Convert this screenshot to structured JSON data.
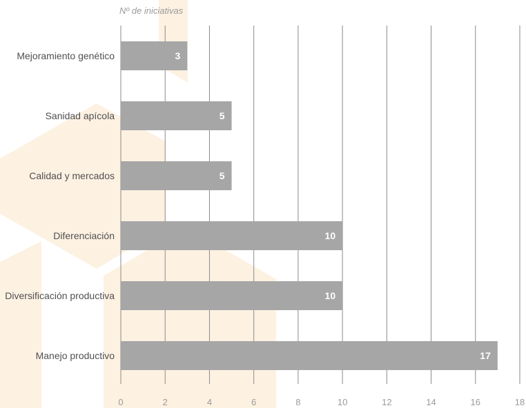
{
  "chart_data": {
    "type": "bar",
    "orientation": "horizontal",
    "unit_label": "Nº de iniciativas",
    "categories": [
      "Mejoramiento genético",
      "Sanidad apícola",
      "Calidad y mercados",
      "Diferenciación",
      "Diversificación productiva",
      "Manejo productivo"
    ],
    "values": [
      3,
      5,
      5,
      10,
      10,
      17
    ],
    "data_labels": [
      "3",
      "5",
      "5",
      "10",
      "10",
      "17"
    ],
    "x_ticks": [
      "0",
      "2",
      "4",
      "6",
      "8",
      "10",
      "12",
      "14",
      "16",
      "18"
    ],
    "xlim": [
      0,
      18
    ],
    "grid": true,
    "legend": "none",
    "colors": {
      "bar": "#a6a6a6",
      "grid": "#8a8a8a",
      "watermark": "#fdf1e2"
    }
  }
}
